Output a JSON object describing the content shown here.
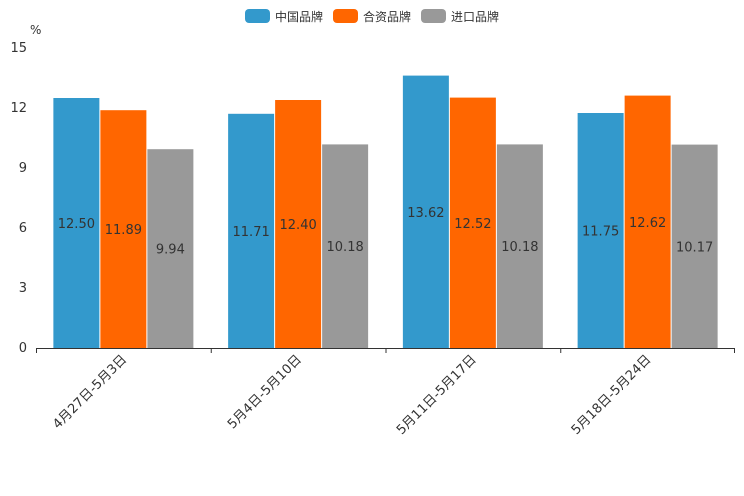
{
  "chart_data": {
    "type": "bar",
    "unit": "%",
    "categories": [
      "4月27日-5月3日",
      "5月4日-5月10日",
      "5月11日-5月17日",
      "5月18日-5月24日"
    ],
    "series": [
      {
        "name": "中国品牌",
        "color": "#3399cc",
        "values": [
          12.5,
          11.71,
          13.62,
          11.75
        ],
        "labels": [
          "12.50",
          "11.71",
          "13.62",
          "11.75"
        ]
      },
      {
        "name": "合资品牌",
        "color": "#ff6600",
        "values": [
          11.89,
          12.4,
          12.52,
          12.62
        ],
        "labels": [
          "11.89",
          "12.40",
          "12.52",
          "12.62"
        ]
      },
      {
        "name": "进口品牌",
        "color": "#999999",
        "values": [
          9.94,
          10.18,
          10.18,
          10.17
        ],
        "labels": [
          "9.94",
          "10.18",
          "10.18",
          "10.17"
        ]
      }
    ],
    "yticks": [
      "0",
      "3",
      "6",
      "9",
      "12",
      "15"
    ],
    "ylim": [
      0,
      15
    ],
    "grid": false,
    "legend": "top-center"
  }
}
